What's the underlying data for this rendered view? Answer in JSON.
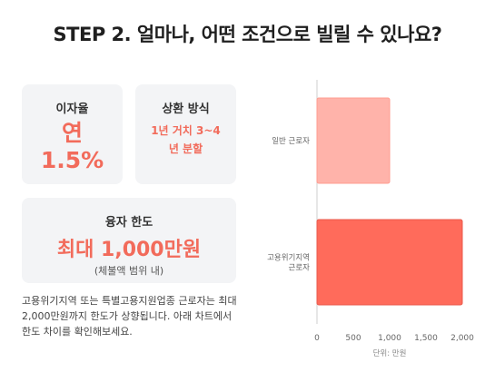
{
  "page": {
    "title": "STEP 2. 얼마나, 어떤 조건으로 빌릴 수 있나요?"
  },
  "cards": {
    "rate": {
      "label": "이자율",
      "line1": "연",
      "line2": "1.5%"
    },
    "repay": {
      "label": "상환 방식",
      "line1": "1년 거치 3~4",
      "line2": "년 분할"
    },
    "limit": {
      "label": "융자 한도",
      "value": "최대 1,000만원",
      "note": "(체불액 범위 내)"
    }
  },
  "description": "고용위기지역 또는 특별고용지원업종 근로자는 최대 2,000만원까지 한도가 상향됩니다. 아래 차트에서 한도 차이를 확인해보세요.",
  "chart_data": {
    "type": "bar",
    "orientation": "horizontal",
    "categories": [
      "일반 근로자",
      "고용위기지역 근로자"
    ],
    "category_lines": [
      [
        "일반 근로자"
      ],
      [
        "고용위기지역",
        "근로자"
      ]
    ],
    "values": [
      1000,
      2000
    ],
    "colors": [
      "#ffb3aa",
      "#ff6b5b"
    ],
    "xlim": [
      0,
      2000
    ],
    "ticks": [
      0,
      500,
      1000,
      1500,
      2000
    ],
    "tick_labels": [
      "0",
      "500",
      "1,000",
      "1,500",
      "2,000"
    ],
    "xlabel": "단위: 만원"
  }
}
